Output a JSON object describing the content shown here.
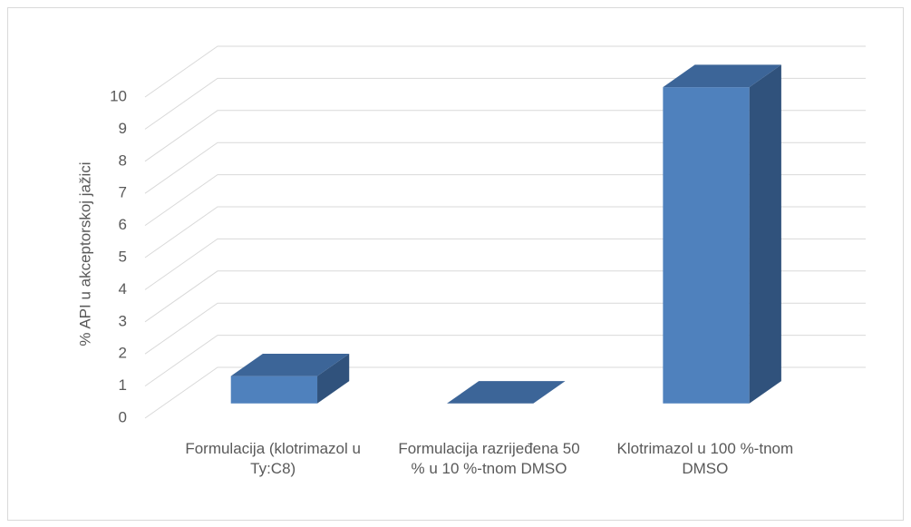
{
  "chart_data": {
    "type": "bar3d",
    "y_axis_label": "% API u akceptorskoj jažici",
    "categories": [
      "Formulacija (klotrimazol u Ty:C8)",
      "Formulacija razrijeđena 50 % u 10 %-tnom DMSO",
      "Klotrimazol u 100 %-tnom DMSO"
    ],
    "values": [
      0.85,
      0,
      9.85
    ],
    "color": "#4f81bd",
    "ylim": [
      0,
      10
    ],
    "yticks": [
      0,
      1,
      2,
      3,
      4,
      5,
      6,
      7,
      8,
      9,
      10
    ],
    "grid": true
  }
}
